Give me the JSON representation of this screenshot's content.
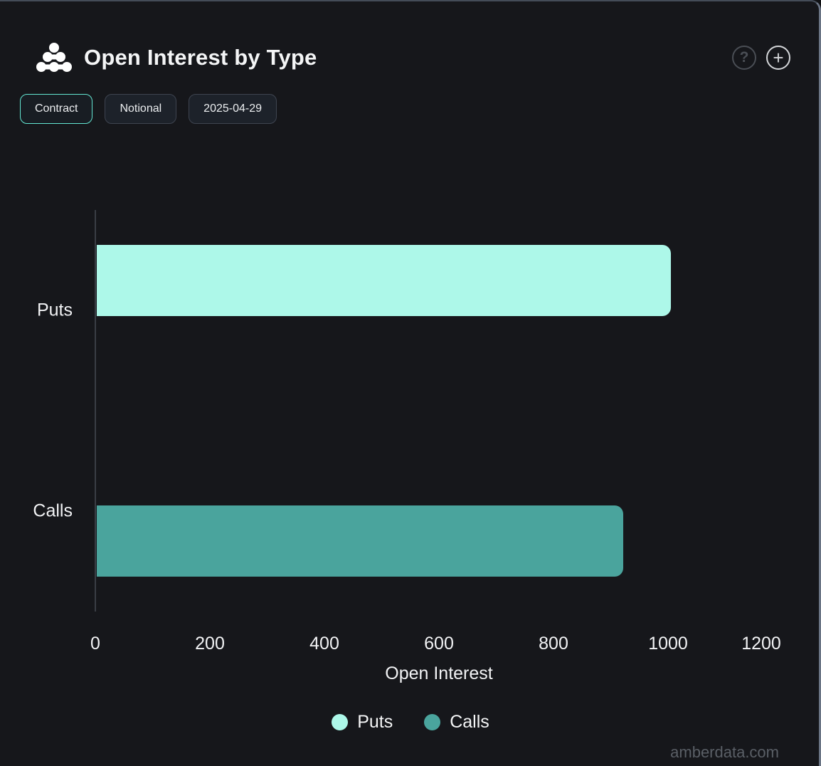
{
  "header": {
    "title": "Open Interest by Type",
    "help_label": "?",
    "add_label": "+"
  },
  "toolbar": {
    "buttons": [
      {
        "label": "Contract",
        "selected": true
      },
      {
        "label": "Notional",
        "selected": false
      },
      {
        "label": "2025-04-29",
        "selected": false
      }
    ]
  },
  "chart_data": {
    "type": "bar",
    "orientation": "horizontal",
    "title": "Open Interest by Type",
    "categories": [
      "Puts",
      "Calls"
    ],
    "series": [
      {
        "name": "Puts",
        "color": "#adf8e9",
        "values": [
          1002,
          null
        ]
      },
      {
        "name": "Calls",
        "color": "#4aa49d",
        "values": [
          null,
          919
        ]
      }
    ],
    "xlabel": "Open Interest",
    "ylabel": "",
    "x_ticks": [
      0,
      200,
      400,
      600,
      800,
      1000,
      1200
    ],
    "xlim": [
      0,
      1200
    ],
    "grid": false,
    "legend": [
      {
        "label": "Puts",
        "color": "#adf8e9"
      },
      {
        "label": "Calls",
        "color": "#4aa49d"
      }
    ],
    "legend_position": "bottom-center"
  },
  "footer": {
    "watermark": "amberdata.com"
  },
  "colors": {
    "background": "#16171b",
    "selected_chip_border": "#63e6d2",
    "axis_line": "#3a3e45",
    "puts_bar": "#adf8e9",
    "calls_bar": "#4aa49d"
  }
}
